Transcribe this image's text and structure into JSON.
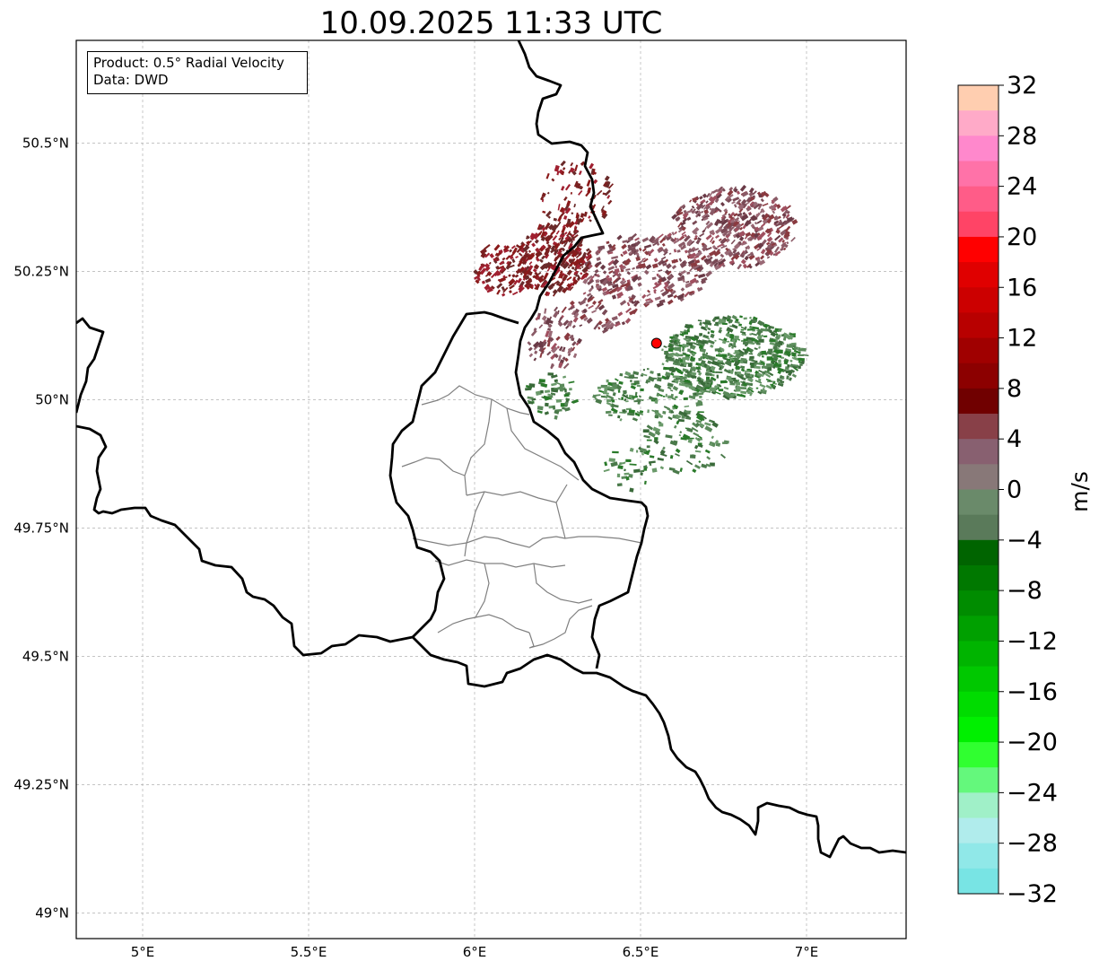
{
  "title": "10.09.2025 11:33 UTC",
  "info": {
    "product": "Product: 0.5° Radial Velocity",
    "data": "Data: DWD"
  },
  "map": {
    "lon_range": [
      4.8,
      7.3
    ],
    "lat_range": [
      48.95,
      50.7
    ],
    "lon_ticks": [
      {
        "value": 5.0,
        "label": "5°E"
      },
      {
        "value": 5.5,
        "label": "5.5°E"
      },
      {
        "value": 6.0,
        "label": "6°E"
      },
      {
        "value": 6.5,
        "label": "6.5°E"
      },
      {
        "value": 7.0,
        "label": "7°E"
      }
    ],
    "lat_ticks": [
      {
        "value": 49.0,
        "label": "49°N"
      },
      {
        "value": 49.25,
        "label": "49.25°N"
      },
      {
        "value": 49.5,
        "label": "49.5°N"
      },
      {
        "value": 49.75,
        "label": "49.75°N"
      },
      {
        "value": 50.0,
        "label": "50°N"
      },
      {
        "value": 50.25,
        "label": "50.25°N"
      },
      {
        "value": 50.5,
        "label": "50.5°N"
      }
    ],
    "radar_site": {
      "lon": 6.548,
      "lat": 50.11,
      "color": "#ff0000"
    }
  },
  "colorbar": {
    "label": "m/s",
    "range": [
      -32,
      32
    ],
    "ticks": [
      {
        "value": 32,
        "label": "32"
      },
      {
        "value": 28,
        "label": "28"
      },
      {
        "value": 24,
        "label": "24"
      },
      {
        "value": 20,
        "label": "20"
      },
      {
        "value": 16,
        "label": "16"
      },
      {
        "value": 12,
        "label": "12"
      },
      {
        "value": 8,
        "label": "8"
      },
      {
        "value": 4,
        "label": "4"
      },
      {
        "value": 0,
        "label": "0"
      },
      {
        "value": -4,
        "label": "−4"
      },
      {
        "value": -8,
        "label": "−8"
      },
      {
        "value": -12,
        "label": "−12"
      },
      {
        "value": -16,
        "label": "−16"
      },
      {
        "value": -20,
        "label": "−20"
      },
      {
        "value": -24,
        "label": "−24"
      },
      {
        "value": -28,
        "label": "−28"
      },
      {
        "value": -32,
        "label": "−32"
      }
    ],
    "colors_top_to_bottom": [
      "#ffceb0",
      "#ffaac8",
      "#ff88cc",
      "#ff72a8",
      "#ff5c88",
      "#ff4466",
      "#ff0000",
      "#e00000",
      "#cc0000",
      "#b80000",
      "#a00000",
      "#8c0000",
      "#700000",
      "#884048",
      "#886070",
      "#887878",
      "#6a8a6a",
      "#5a7a5a",
      "#006400",
      "#007800",
      "#008c00",
      "#00a000",
      "#00b400",
      "#00c800",
      "#00dc00",
      "#00f000",
      "#30ff30",
      "#64f87c",
      "#a0f0c8",
      "#b0ecec",
      "#90e8e8",
      "#78e4e4"
    ]
  }
}
